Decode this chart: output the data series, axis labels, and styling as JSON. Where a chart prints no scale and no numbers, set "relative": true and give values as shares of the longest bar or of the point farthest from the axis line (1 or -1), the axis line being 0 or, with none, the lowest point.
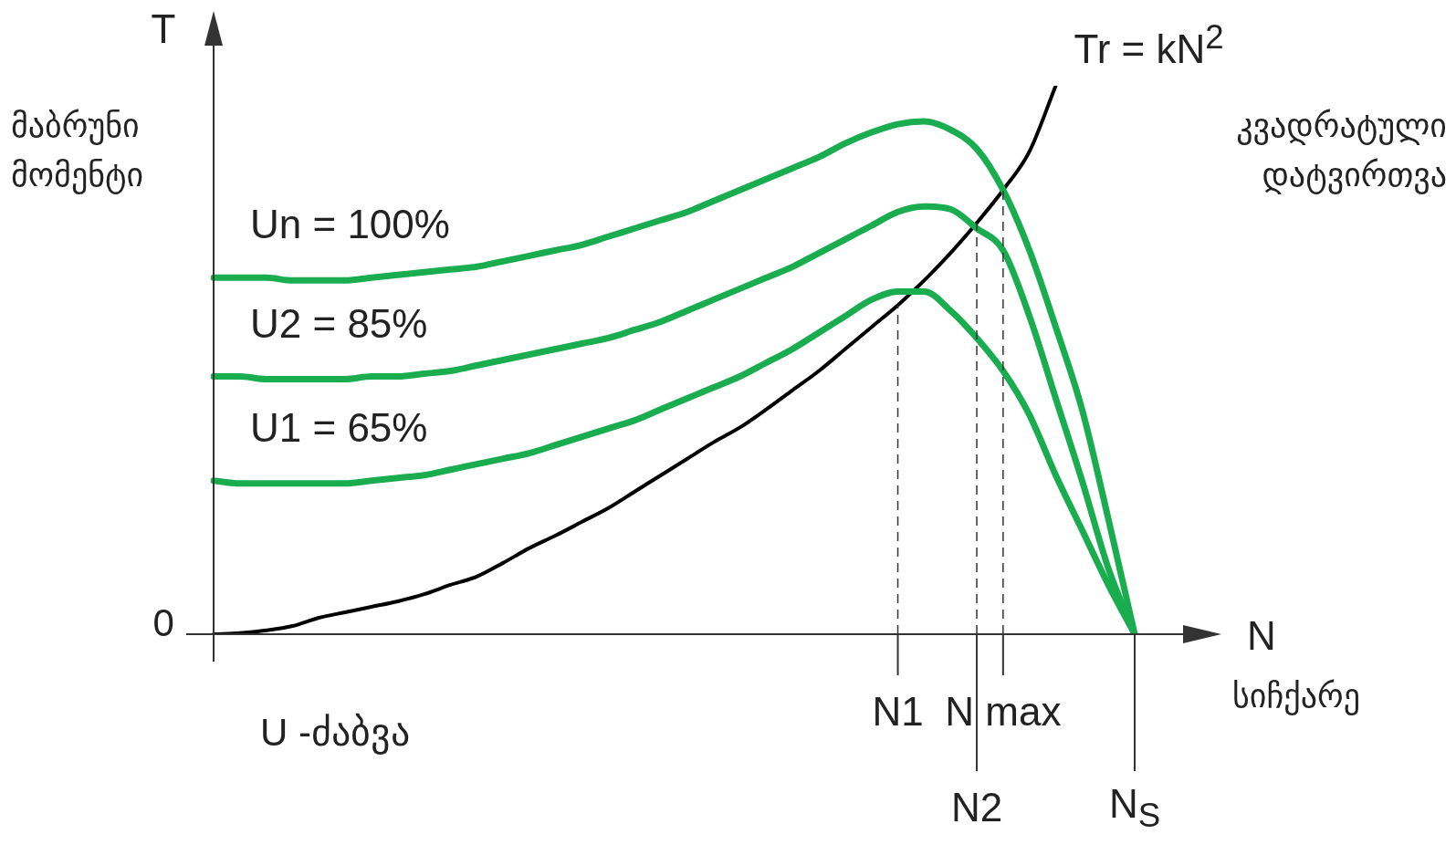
{
  "chart_data": {
    "type": "line",
    "relative": true,
    "xlabel": "N",
    "ylabel": "T",
    "categories": [
      null,
      null,
      null,
      null,
      null,
      null,
      null,
      null,
      null,
      null,
      null,
      null,
      null,
      null,
      null,
      null,
      null,
      null,
      null,
      null,
      null,
      null,
      null,
      null,
      null,
      null,
      "N1",
      null,
      null,
      "N2",
      "N max",
      null,
      null,
      null,
      null,
      "N$_{S}$"
    ],
    "series": [
      {
        "name": "Un = 100%",
        "color": "#1aad4f",
        "values": [
          0.65,
          0.65,
          0.65,
          0.645,
          0.645,
          0.645,
          0.65,
          0.655,
          0.66,
          0.665,
          0.67,
          0.68,
          0.69,
          0.7,
          0.71,
          0.725,
          0.74,
          0.755,
          0.77,
          0.79,
          0.81,
          0.83,
          0.85,
          0.87,
          0.895,
          0.915,
          0.93,
          0.935,
          0.92,
          0.885,
          0.81,
          0.7,
          0.56,
          0.41,
          0.21,
          0
        ]
      },
      {
        "name": "U2 = 85%",
        "color": "#1aad4f",
        "values": [
          0.47,
          0.47,
          0.465,
          0.465,
          0.465,
          0.465,
          0.47,
          0.47,
          0.475,
          0.48,
          0.49,
          0.5,
          0.51,
          0.52,
          0.53,
          0.54,
          0.555,
          0.57,
          0.59,
          0.61,
          0.63,
          0.65,
          0.67,
          0.695,
          0.72,
          0.745,
          0.77,
          0.78,
          0.775,
          0.74,
          0.7,
          0.58,
          0.43,
          0.28,
          0.12,
          0
        ]
      },
      {
        "name": "U1 = 65%",
        "color": "#1aad4f",
        "values": [
          0.28,
          0.275,
          0.275,
          0.275,
          0.275,
          0.275,
          0.28,
          0.285,
          0.29,
          0.3,
          0.31,
          0.32,
          0.33,
          0.345,
          0.36,
          0.375,
          0.39,
          0.41,
          0.43,
          0.45,
          0.47,
          0.495,
          0.52,
          0.55,
          0.58,
          0.61,
          0.625,
          0.625,
          0.59,
          0.54,
          0.48,
          0.4,
          0.29,
          0.19,
          0.09,
          0
        ]
      },
      {
        "name": "Tr = kN$^{2}$",
        "color": "#000000",
        "values": [
          0,
          0.002,
          0.007,
          0.015,
          0.03,
          0.04,
          0.05,
          0.06,
          0.073,
          0.09,
          0.105,
          0.13,
          0.157,
          0.18,
          0.205,
          0.23,
          0.26,
          0.29,
          0.32,
          0.35,
          0.377,
          0.41,
          0.445,
          0.48,
          0.52,
          0.56,
          0.6,
          0.645,
          0.695,
          0.75,
          0.81,
          0.88,
          1,
          null,
          null,
          null
        ]
      }
    ],
    "ref_lines": [
      {
        "axis": "x",
        "value": "N1",
        "line_style": "dashed"
      },
      {
        "axis": "x",
        "value": "N2",
        "line_style": "dashed"
      },
      {
        "axis": "x",
        "value": "N max",
        "line_style": "dashed"
      }
    ],
    "annotations": [
      "მაბრუნი მომენტი",
      "კვადრატული დატვირთვა",
      "სიჩქარე",
      "U -ძაბვა",
      "0"
    ],
    "grid": false,
    "legend": false,
    "marker": "none",
    "line_style": "solid"
  }
}
